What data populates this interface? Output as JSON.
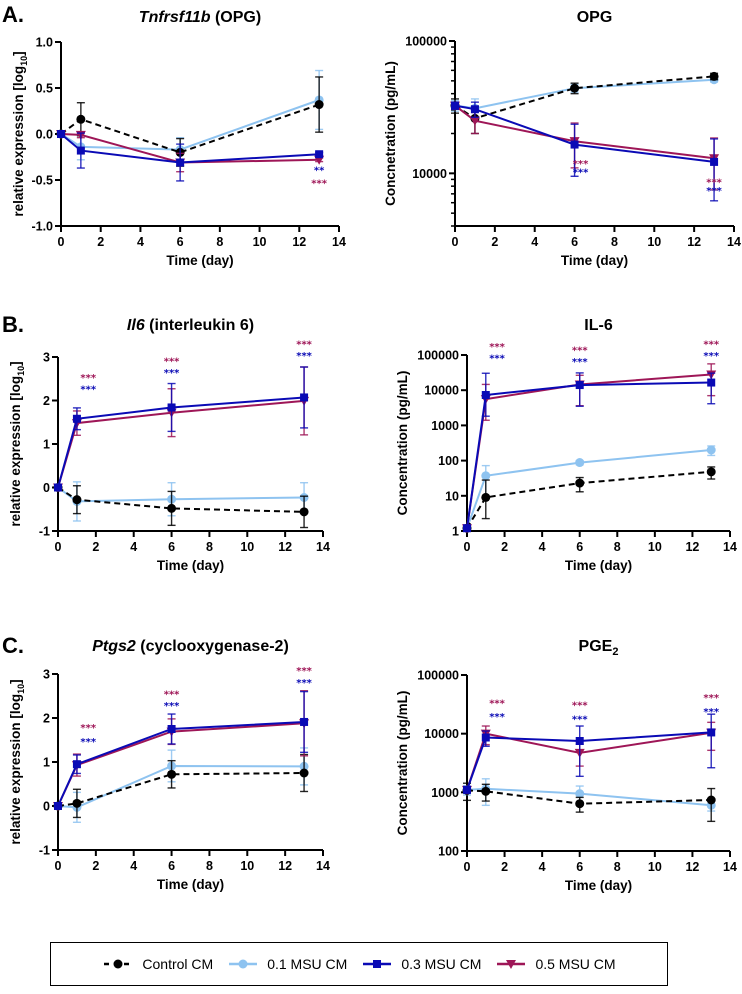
{
  "figure": {
    "panel_letters": [
      "A.",
      "B.",
      "C."
    ]
  },
  "legend": {
    "items": [
      {
        "key": "control",
        "label": "Control CM"
      },
      {
        "key": "msu01",
        "label": "0.1 MSU CM"
      },
      {
        "key": "msu03",
        "label": "0.3 MSU CM"
      },
      {
        "key": "msu05",
        "label": "0.5 MSU CM"
      }
    ]
  },
  "series_styles": {
    "control": {
      "color": "#000000",
      "marker": "circle",
      "dashed": true
    },
    "msu01": {
      "color": "#8EC3F0",
      "marker": "circle",
      "dashed": false
    },
    "msu03": {
      "color": "#0A0AB5",
      "marker": "square",
      "dashed": false
    },
    "msu05": {
      "color": "#9E1657",
      "marker": "triangle-down",
      "dashed": false
    }
  },
  "chart_data": [
    {
      "id": "A-left",
      "panel": "A.",
      "type": "line",
      "title": "Tnfrsf11b",
      "title_italic_part": "Tnfrsf11b",
      "title_rest": " (OPG)",
      "xlabel": "Time (day)",
      "ylabel": "relative expression [log10]",
      "x": [
        0,
        1,
        6,
        13
      ],
      "xlim": [
        0,
        14
      ],
      "xticks": [
        0,
        2,
        4,
        6,
        8,
        10,
        12,
        14
      ],
      "yscale": "linear",
      "ylim": [
        -1.0,
        1.0
      ],
      "yticks": [
        -1.0,
        -0.5,
        0.0,
        0.5,
        1.0
      ],
      "ytick_labels": [
        "-1.0",
        "-0.5",
        "0.0",
        "0.5",
        "1.0"
      ],
      "series": [
        {
          "key": "control",
          "name": "Control CM",
          "values": [
            0.0,
            0.16,
            -0.2,
            0.32
          ],
          "err": [
            0,
            0.18,
            0.15,
            0.3
          ]
        },
        {
          "key": "msu01",
          "name": "0.1 MSU CM",
          "values": [
            0.0,
            -0.14,
            -0.17,
            0.37
          ],
          "err": [
            0,
            0.14,
            0.13,
            0.32
          ]
        },
        {
          "key": "msu03",
          "name": "0.3 MSU CM",
          "values": [
            0.0,
            -0.18,
            -0.31,
            -0.22
          ],
          "err": [
            0,
            0.19,
            0.2,
            0.02
          ]
        },
        {
          "key": "msu05",
          "name": "0.5 MSU CM",
          "values": [
            0.0,
            -0.01,
            -0.31,
            -0.28
          ],
          "err": [
            0,
            0.03,
            0.1,
            0.02
          ]
        }
      ],
      "annotations": [
        {
          "x": 13,
          "text": "**",
          "series": "msu03",
          "y": -0.43
        },
        {
          "x": 13,
          "text": "***",
          "series": "msu05",
          "y": -0.57
        }
      ]
    },
    {
      "id": "A-right",
      "panel": "",
      "type": "line",
      "title": "OPG",
      "title_italic_part": "",
      "title_rest": "OPG",
      "xlabel": "Time (day)",
      "ylabel": "Concnetration (pg/mL)",
      "x": [
        0,
        1,
        6,
        13
      ],
      "xlim": [
        0,
        14
      ],
      "xticks": [
        0,
        2,
        4,
        6,
        8,
        10,
        12,
        14
      ],
      "yscale": "log",
      "ylim": [
        4000,
        100000
      ],
      "yticks": [
        10000,
        100000
      ],
      "ytick_labels": [
        "10000",
        "100000"
      ],
      "series": [
        {
          "key": "control",
          "name": "Control CM",
          "values": [
            32500,
            26000,
            44000,
            54000
          ],
          "err": [
            4000,
            6000,
            4000,
            3000
          ]
        },
        {
          "key": "msu01",
          "name": "0.1 MSU CM",
          "values": [
            32500,
            31000,
            44000,
            51000
          ],
          "err": [
            3000,
            5500,
            3000,
            2000
          ]
        },
        {
          "key": "msu03",
          "name": "0.3 MSU CM",
          "values": [
            32500,
            30500,
            16500,
            12200
          ],
          "err": [
            2000,
            4000,
            7000,
            6000
          ]
        },
        {
          "key": "msu05",
          "name": "0.5 MSU CM",
          "values": [
            32500,
            25000,
            17500,
            13000
          ],
          "err": [
            2000,
            5000,
            6500,
            5500
          ]
        }
      ],
      "annotations": [
        {
          "x": 6.3,
          "text": "***",
          "series": "msu05",
          "y": 11200
        },
        {
          "x": 6.3,
          "text": "***",
          "series": "msu03",
          "y": 9600
        },
        {
          "x": 13,
          "text": "***",
          "series": "msu05",
          "y": 8100
        },
        {
          "x": 13,
          "text": "***",
          "series": "msu03",
          "y": 7000
        }
      ]
    },
    {
      "id": "B-left",
      "panel": "B.",
      "type": "line",
      "title": "Il6",
      "title_italic_part": "Il6",
      "title_rest": " (interleukin 6)",
      "xlabel": "Time (day)",
      "ylabel": "relative expression [log10]",
      "x": [
        0,
        1,
        6,
        13
      ],
      "xlim": [
        0,
        14
      ],
      "xticks": [
        0,
        2,
        4,
        6,
        8,
        10,
        12,
        14
      ],
      "yscale": "linear",
      "ylim": [
        -1,
        3
      ],
      "yticks": [
        -1,
        0,
        1,
        2,
        3
      ],
      "ytick_labels": [
        "-1",
        "0",
        "1",
        "2",
        "3"
      ],
      "series": [
        {
          "key": "control",
          "name": "Control CM",
          "values": [
            0.0,
            -0.28,
            -0.48,
            -0.56
          ],
          "err": [
            0,
            0.32,
            0.39,
            0.36
          ]
        },
        {
          "key": "msu01",
          "name": "0.1 MSU CM",
          "values": [
            0.0,
            -0.32,
            -0.27,
            -0.23
          ],
          "err": [
            0,
            0.45,
            0.38,
            0.34
          ]
        },
        {
          "key": "msu03",
          "name": "0.3 MSU CM",
          "values": [
            0.0,
            1.58,
            1.84,
            2.07
          ],
          "err": [
            0,
            0.25,
            0.55,
            0.7
          ]
        },
        {
          "key": "msu05",
          "name": "0.5 MSU CM",
          "values": [
            0.0,
            1.48,
            1.72,
            1.99
          ],
          "err": [
            0,
            0.28,
            0.55,
            0.78
          ]
        }
      ],
      "annotations": [
        {
          "x": 1.6,
          "text": "***",
          "series": "msu05",
          "y": 2.45
        },
        {
          "x": 1.6,
          "text": "***",
          "series": "msu03",
          "y": 2.18
        },
        {
          "x": 6,
          "text": "***",
          "series": "msu05",
          "y": 2.83
        },
        {
          "x": 6,
          "text": "***",
          "series": "msu03",
          "y": 2.56
        },
        {
          "x": 13,
          "text": "***",
          "series": "msu05",
          "y": 3.22
        },
        {
          "x": 13,
          "text": "***",
          "series": "msu03",
          "y": 2.95
        }
      ]
    },
    {
      "id": "B-right",
      "panel": "",
      "type": "line",
      "title": "IL-6",
      "title_italic_part": "",
      "title_rest": "IL-6",
      "xlabel": "Time (day)",
      "ylabel": "Concentration (pg/mL)",
      "x": [
        0,
        1,
        6,
        13
      ],
      "xlim": [
        0,
        14
      ],
      "xticks": [
        0,
        2,
        4,
        6,
        8,
        10,
        12,
        14
      ],
      "yscale": "log",
      "ylim": [
        1,
        100000
      ],
      "yticks": [
        1,
        10,
        100,
        1000,
        10000,
        100000
      ],
      "ytick_labels": [
        "1",
        "10",
        "100",
        "1000",
        "10000",
        "100000"
      ],
      "series": [
        {
          "key": "control",
          "name": "Control CM",
          "values": [
            1.2,
            9,
            23,
            48
          ],
          "err": [
            0,
            19,
            10,
            18
          ]
        },
        {
          "key": "msu01",
          "name": "0.1 MSU CM",
          "values": [
            1.2,
            37,
            88,
            200
          ],
          "err": [
            0,
            35,
            12,
            60
          ]
        },
        {
          "key": "msu03",
          "name": "0.3 MSU CM",
          "values": [
            1.2,
            7300,
            14000,
            16500
          ],
          "err": [
            0,
            23000,
            17000,
            14000
          ]
        },
        {
          "key": "msu05",
          "name": "0.5 MSU CM",
          "values": [
            1.2,
            5600,
            14500,
            28000
          ],
          "err": [
            0,
            9000,
            12000,
            28000
          ]
        }
      ],
      "annotations": [
        {
          "x": 1.6,
          "text": "***",
          "series": "msu05",
          "y": 140000
        },
        {
          "x": 1.6,
          "text": "***",
          "series": "msu03",
          "y": 65000
        },
        {
          "x": 6,
          "text": "***",
          "series": "msu05",
          "y": 110000
        },
        {
          "x": 6,
          "text": "***",
          "series": "msu03",
          "y": 52000
        },
        {
          "x": 13,
          "text": "***",
          "series": "msu05",
          "y": 165000
        },
        {
          "x": 13,
          "text": "***",
          "series": "msu03",
          "y": 78000
        }
      ]
    },
    {
      "id": "C-left",
      "panel": "C.",
      "type": "line",
      "title": "Ptgs2",
      "title_italic_part": "Ptgs2",
      "title_rest": " (cyclooxygenase-2)",
      "xlabel": "Time (day)",
      "ylabel": "relative expression [log10]",
      "x": [
        0,
        1,
        6,
        13
      ],
      "xlim": [
        0,
        14
      ],
      "xticks": [
        0,
        2,
        4,
        6,
        8,
        10,
        12,
        14
      ],
      "yscale": "linear",
      "ylim": [
        -1,
        3
      ],
      "yticks": [
        -1,
        0,
        1,
        2,
        3
      ],
      "ytick_labels": [
        "-1",
        "0",
        "1",
        "2",
        "3"
      ],
      "series": [
        {
          "key": "control",
          "name": "Control CM",
          "values": [
            0.0,
            0.06,
            0.72,
            0.75
          ],
          "err": [
            0,
            0.32,
            0.31,
            0.42
          ]
        },
        {
          "key": "msu01",
          "name": "0.1 MSU CM",
          "values": [
            0.0,
            -0.03,
            0.91,
            0.9
          ],
          "err": [
            0,
            0.34,
            0.36,
            0.42
          ]
        },
        {
          "key": "msu03",
          "name": "0.3 MSU CM",
          "values": [
            0.0,
            0.95,
            1.75,
            1.91
          ],
          "err": [
            0,
            0.21,
            0.34,
            0.69
          ]
        },
        {
          "key": "msu05",
          "name": "0.5 MSU CM",
          "values": [
            0.0,
            0.93,
            1.69,
            1.88
          ],
          "err": [
            0,
            0.25,
            0.29,
            0.74
          ]
        }
      ],
      "annotations": [
        {
          "x": 1.6,
          "text": "***",
          "series": "msu05",
          "y": 1.7
        },
        {
          "x": 1.6,
          "text": "***",
          "series": "msu03",
          "y": 1.39
        },
        {
          "x": 6,
          "text": "***",
          "series": "msu05",
          "y": 2.47
        },
        {
          "x": 6,
          "text": "***",
          "series": "msu03",
          "y": 2.2
        },
        {
          "x": 13,
          "text": "***",
          "series": "msu05",
          "y": 3.0
        },
        {
          "x": 13,
          "text": "***",
          "series": "msu03",
          "y": 2.73
        }
      ]
    },
    {
      "id": "C-right",
      "panel": "",
      "type": "line",
      "title": "PGE2",
      "title_italic_part": "",
      "title_rest": "PGE",
      "title_subscript": "2",
      "xlabel": "Time (day)",
      "ylabel": "Concentration (pg/mL)",
      "x": [
        0,
        1,
        6,
        13
      ],
      "xlim": [
        0,
        14
      ],
      "xticks": [
        0,
        2,
        4,
        6,
        8,
        10,
        12,
        14
      ],
      "yscale": "log",
      "ylim": [
        100,
        100000
      ],
      "yticks": [
        100,
        1000,
        10000,
        100000
      ],
      "ytick_labels": [
        "100",
        "1000",
        "10000",
        "100000"
      ],
      "series": [
        {
          "key": "control",
          "name": "Control CM",
          "values": [
            1080,
            1040,
            640,
            740
          ],
          "err": [
            350,
            330,
            180,
            420
          ]
        },
        {
          "key": "msu01",
          "name": "0.1 MSU CM",
          "values": [
            1100,
            1150,
            950,
            600
          ],
          "err": [
            200,
            550,
            330,
            120
          ]
        },
        {
          "key": "msu03",
          "name": "0.3 MSU CM",
          "values": [
            1100,
            8600,
            7500,
            10500
          ],
          "err": [
            0,
            2500,
            6000,
            11000
          ]
        },
        {
          "key": "msu05",
          "name": "0.5 MSU CM",
          "values": [
            1100,
            10000,
            4700,
            10400
          ],
          "err": [
            0,
            3500,
            1900,
            5200
          ]
        }
      ],
      "annotations": [
        {
          "x": 1.6,
          "text": "***",
          "series": "msu05",
          "y": 29000
        },
        {
          "x": 1.6,
          "text": "***",
          "series": "msu03",
          "y": 17000
        },
        {
          "x": 6,
          "text": "***",
          "series": "msu05",
          "y": 27000
        },
        {
          "x": 6,
          "text": "***",
          "series": "msu03",
          "y": 15500
        },
        {
          "x": 13,
          "text": "***",
          "series": "msu05",
          "y": 36000
        },
        {
          "x": 13,
          "text": "***",
          "series": "msu03",
          "y": 21000
        }
      ]
    }
  ]
}
